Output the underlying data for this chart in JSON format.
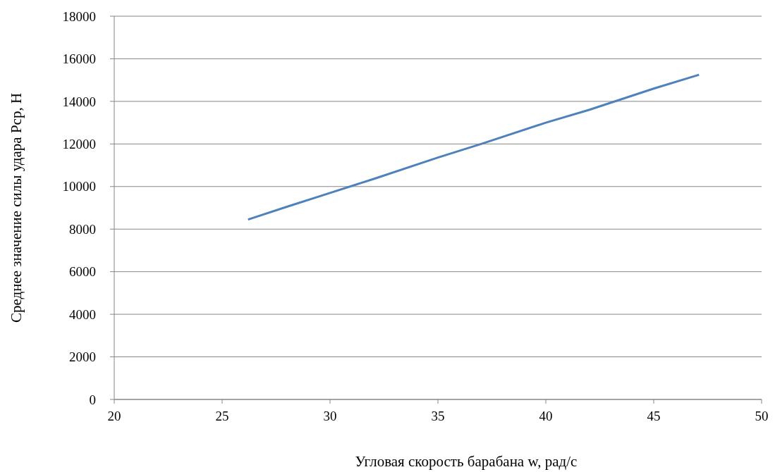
{
  "chart_data": {
    "type": "line",
    "xlabel": "Угловая скорость барабана w, рад/с",
    "ylabel": "Среднее значение силы удара Pср, Н",
    "series": [
      {
        "color": "#4f81bd",
        "x": [
          26.2,
          28,
          30,
          32,
          35,
          37,
          40,
          42,
          45,
          47.1
        ],
        "values": [
          8450,
          9050,
          9700,
          10350,
          11360,
          12000,
          13000,
          13600,
          14600,
          15250
        ]
      }
    ],
    "xlim": [
      20,
      50
    ],
    "xticks": [
      20,
      25,
      30,
      35,
      40,
      45,
      50
    ],
    "ylim": [
      0,
      18000
    ],
    "yticks": [
      0,
      2000,
      4000,
      6000,
      8000,
      10000,
      12000,
      14000,
      16000,
      18000
    ],
    "grid": "y",
    "marker": "none",
    "line_style": "solid"
  }
}
